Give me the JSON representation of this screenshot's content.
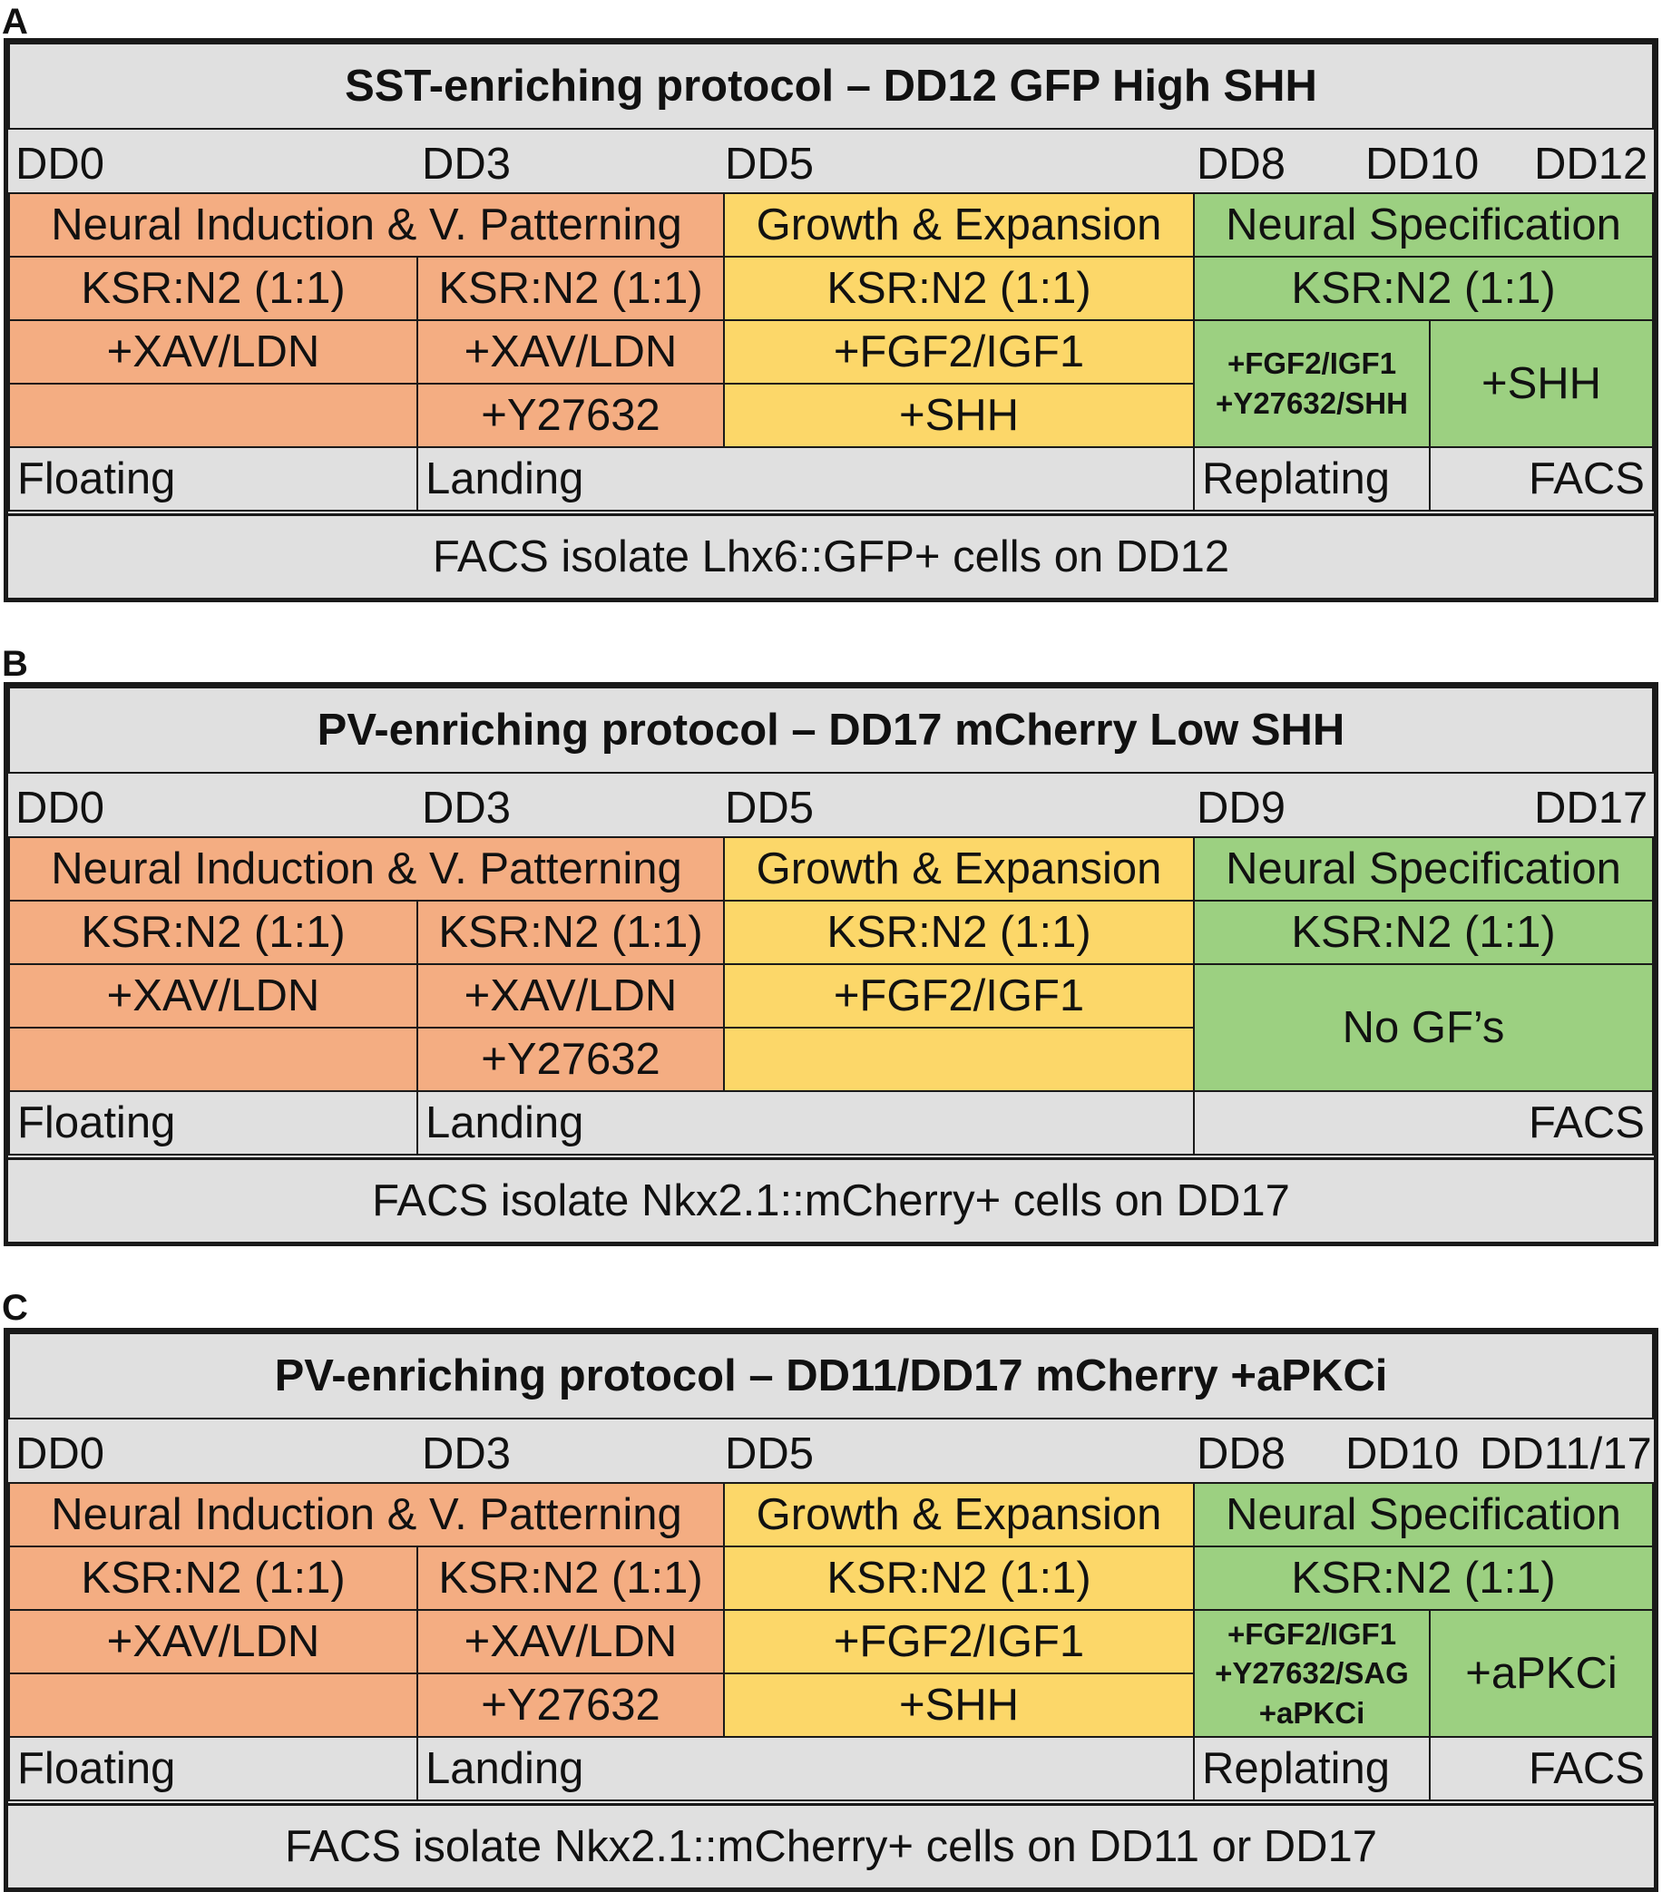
{
  "panels": [
    {
      "label": "A",
      "title": "SST-enriching protocol – DD12 GFP High SHH",
      "days": [
        "DD0",
        "DD3",
        "DD5",
        "DD8",
        "DD10",
        "DD12"
      ],
      "stages": [
        "Neural Induction & V. Patterning",
        "Growth & Expansion",
        "Neural Specification"
      ],
      "media": [
        "KSR:N2 (1:1)",
        "KSR:N2 (1:1)",
        "KSR:N2 (1:1)",
        "KSR:N2 (1:1)"
      ],
      "row3": [
        "+XAV/LDN",
        "+XAV/LDN",
        "+FGF2/IGF1"
      ],
      "row4": [
        "",
        "+Y27632",
        "+SHH"
      ],
      "green_split": {
        "left_lines": [
          "+FGF2/IGF1",
          "+Y27632/SHH"
        ],
        "right": "+SHH"
      },
      "process": [
        "Floating",
        "Landing",
        "Replating",
        "FACS"
      ],
      "footer": "FACS isolate Lhx6::GFP+ cells on DD12",
      "colors": {
        "orange": "#f4ad82",
        "yellow": "#fcd769",
        "green": "#9cd081",
        "gray": "#e0e0e0"
      }
    },
    {
      "label": "B",
      "title": "PV-enriching protocol – DD17 mCherry Low SHH",
      "days": [
        "DD0",
        "DD3",
        "DD5",
        "DD9",
        "DD17"
      ],
      "stages": [
        "Neural Induction & V. Patterning",
        "Growth & Expansion",
        "Neural Specification"
      ],
      "media": [
        "KSR:N2 (1:1)",
        "KSR:N2 (1:1)",
        "KSR:N2 (1:1)",
        "KSR:N2 (1:1)"
      ],
      "row3": [
        "+XAV/LDN",
        "+XAV/LDN",
        "+FGF2/IGF1"
      ],
      "row4": [
        "",
        "+Y27632",
        ""
      ],
      "green_merged": "No GF’s",
      "process": [
        "Floating",
        "Landing",
        "FACS"
      ],
      "footer": "FACS isolate Nkx2.1::mCherry+ cells on DD17"
    },
    {
      "label": "C",
      "title": "PV-enriching protocol – DD11/DD17 mCherry +aPKCi",
      "days": [
        "DD0",
        "DD3",
        "DD5",
        "DD8",
        "DD10",
        "DD11/17"
      ],
      "stages": [
        "Neural Induction & V. Patterning",
        "Growth & Expansion",
        "Neural Specification"
      ],
      "media": [
        "KSR:N2 (1:1)",
        "KSR:N2 (1:1)",
        "KSR:N2 (1:1)",
        "KSR:N2 (1:1)"
      ],
      "row3": [
        "+XAV/LDN",
        "+XAV/LDN",
        "+FGF2/IGF1"
      ],
      "row4": [
        "",
        "+Y27632",
        "+SHH"
      ],
      "green_split": {
        "left_lines": [
          "+FGF2/IGF1",
          "+Y27632/SAG",
          "+aPKCi"
        ],
        "right": "+aPKCi"
      },
      "process": [
        "Floating",
        "Landing",
        "Replating",
        "FACS"
      ],
      "footer": "FACS isolate Nkx2.1::mCherry+ cells on DD11 or DD17"
    }
  ]
}
